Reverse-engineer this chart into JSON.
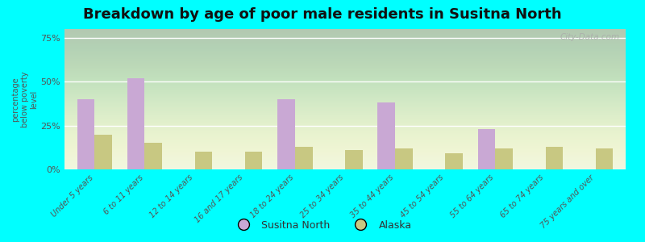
{
  "title": "Breakdown by age of poor male residents in Susitna North",
  "categories": [
    "Under 5 years",
    "6 to 11 years",
    "12 to 14 years",
    "16 and 17 years",
    "18 to 24 years",
    "25 to 34 years",
    "35 to 44 years",
    "45 to 54 years",
    "55 to 64 years",
    "65 to 74 years",
    "75 years and over"
  ],
  "susitna_values": [
    40,
    52,
    0,
    0,
    40,
    0,
    38,
    0,
    23,
    0,
    0
  ],
  "alaska_values": [
    20,
    15,
    10,
    10,
    13,
    11,
    12,
    9,
    12,
    13,
    12
  ],
  "susitna_color": "#c9a8d4",
  "alaska_color": "#c8c882",
  "background_color": "#00ffff",
  "ylabel": "percentage\nbelow poverty\nlevel",
  "yticks": [
    0,
    25,
    50,
    75
  ],
  "ytick_labels": [
    "0%",
    "25%",
    "50%",
    "75%"
  ],
  "bar_width": 0.35,
  "title_fontsize": 13,
  "watermark": "City-Data.com",
  "legend_labels": [
    "Susitna North",
    "Alaska"
  ],
  "xlabel_color": "#996633",
  "ylabel_color": "#555555",
  "grid_color": "#dddddd",
  "plot_area_color_top": "#eef4de",
  "plot_area_color_bottom": "#f8fdf0"
}
